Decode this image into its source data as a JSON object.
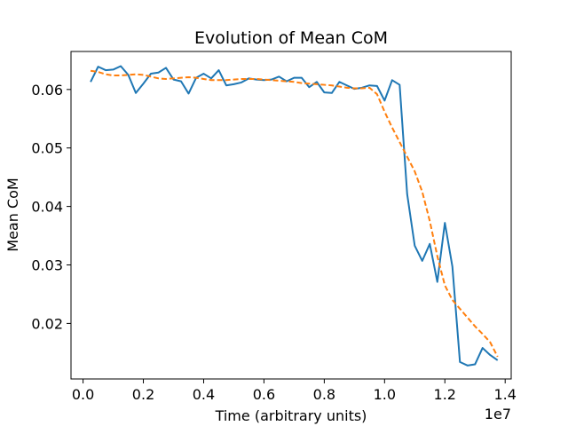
{
  "chart_data": {
    "type": "line",
    "title": "Evolution of Mean CoM",
    "xlabel": "Time (arbitrary units)",
    "ylabel": "Mean CoM",
    "x_offset_label": "1e7",
    "xlim": [
      -0.04,
      1.42
    ],
    "ylim": [
      0.0105,
      0.0665
    ],
    "x_ticks": [
      0.0,
      0.2,
      0.4,
      0.6,
      0.8,
      1.0,
      1.2,
      1.4
    ],
    "x_tick_labels": [
      "0.0",
      "0.2",
      "0.4",
      "0.6",
      "0.8",
      "1.0",
      "1.2",
      "1.4"
    ],
    "y_ticks": [
      0.02,
      0.03,
      0.04,
      0.05,
      0.06
    ],
    "y_tick_labels": [
      "0.02",
      "0.03",
      "0.04",
      "0.05",
      "0.06"
    ],
    "grid": false,
    "legend": "none",
    "series": [
      {
        "style": "solid",
        "color": "#1f77b4",
        "x": [
          0.025,
          0.05,
          0.075,
          0.1,
          0.125,
          0.15,
          0.175,
          0.2,
          0.225,
          0.25,
          0.275,
          0.3,
          0.325,
          0.35,
          0.375,
          0.4,
          0.425,
          0.45,
          0.475,
          0.5,
          0.525,
          0.55,
          0.575,
          0.6,
          0.625,
          0.65,
          0.675,
          0.7,
          0.725,
          0.75,
          0.775,
          0.8,
          0.825,
          0.85,
          0.875,
          0.9,
          0.925,
          0.95,
          0.975,
          1.0,
          1.025,
          1.05,
          1.075,
          1.1,
          1.125,
          1.15,
          1.175,
          1.2,
          1.225,
          1.25,
          1.275,
          1.3,
          1.325,
          1.35,
          1.375
        ],
        "y": [
          0.0613,
          0.0639,
          0.0633,
          0.0634,
          0.064,
          0.0625,
          0.0594,
          0.061,
          0.0627,
          0.0629,
          0.0637,
          0.0617,
          0.0614,
          0.0593,
          0.062,
          0.0627,
          0.0619,
          0.0633,
          0.0607,
          0.0609,
          0.0612,
          0.0619,
          0.0617,
          0.0616,
          0.0617,
          0.0622,
          0.0614,
          0.062,
          0.062,
          0.0604,
          0.0613,
          0.0595,
          0.0594,
          0.0613,
          0.0607,
          0.0601,
          0.0603,
          0.0607,
          0.0606,
          0.0581,
          0.0616,
          0.0608,
          0.0421,
          0.0333,
          0.0307,
          0.0336,
          0.0271,
          0.0372,
          0.0297,
          0.0134,
          0.0128,
          0.013,
          0.0158,
          0.0146,
          0.0137
        ]
      },
      {
        "style": "dashed",
        "color": "#ff7f0e",
        "x": [
          0.025,
          0.05,
          0.075,
          0.1,
          0.125,
          0.15,
          0.175,
          0.2,
          0.225,
          0.25,
          0.275,
          0.3,
          0.325,
          0.35,
          0.375,
          0.4,
          0.425,
          0.45,
          0.475,
          0.5,
          0.525,
          0.55,
          0.575,
          0.6,
          0.625,
          0.65,
          0.675,
          0.7,
          0.725,
          0.75,
          0.775,
          0.8,
          0.825,
          0.85,
          0.875,
          0.9,
          0.925,
          0.95,
          0.975,
          1.0,
          1.025,
          1.05,
          1.075,
          1.1,
          1.125,
          1.15,
          1.175,
          1.2,
          1.225,
          1.25,
          1.275,
          1.3,
          1.325,
          1.35,
          1.375
        ],
        "y": [
          0.0632,
          0.063,
          0.0626,
          0.0624,
          0.0624,
          0.0625,
          0.0626,
          0.0625,
          0.0622,
          0.0619,
          0.0618,
          0.0619,
          0.062,
          0.0621,
          0.062,
          0.0618,
          0.0616,
          0.0616,
          0.0616,
          0.0617,
          0.0618,
          0.0618,
          0.0618,
          0.0617,
          0.0616,
          0.0615,
          0.0614,
          0.0613,
          0.0611,
          0.061,
          0.0609,
          0.0608,
          0.0607,
          0.0605,
          0.0603,
          0.0602,
          0.0602,
          0.0603,
          0.0592,
          0.0562,
          0.0535,
          0.051,
          0.0485,
          0.046,
          0.0425,
          0.0375,
          0.0315,
          0.0265,
          0.024,
          0.0225,
          0.021,
          0.0195,
          0.0182,
          0.0168,
          0.0143
        ]
      }
    ]
  }
}
